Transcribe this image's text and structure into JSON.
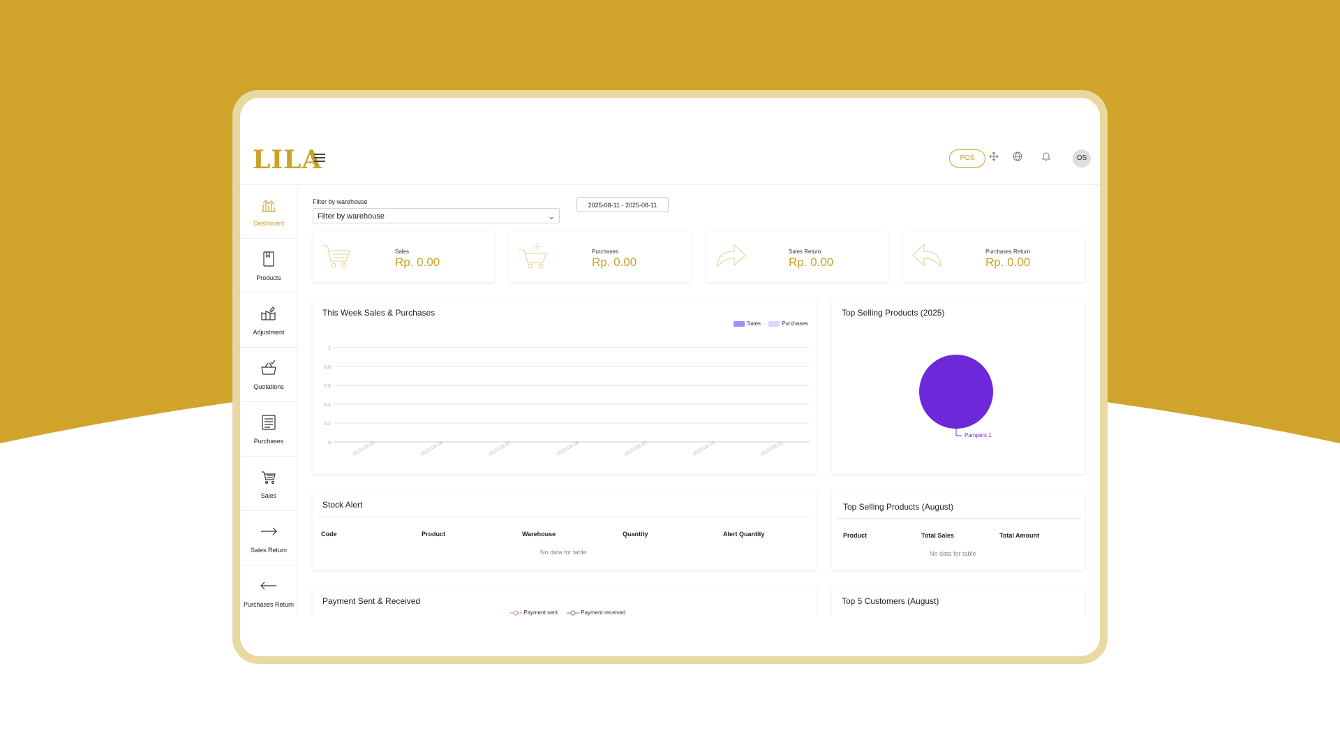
{
  "colors": {
    "gold": "#d0a42a",
    "accent": "#c9a227",
    "pie": "#6d28d9",
    "sales": "#a78bfa",
    "purchases": "#ddd6fe"
  },
  "app": {
    "logo": "LILA"
  },
  "header": {
    "pos_label": "POS",
    "icons": [
      "fullscreen-icon",
      "globe-icon",
      "bell-icon"
    ],
    "avatar_initials": "OS"
  },
  "sidebar": {
    "items": [
      {
        "label": "Dashboard",
        "icon": "chart-icon",
        "active": true
      },
      {
        "label": "Products",
        "icon": "box-icon"
      },
      {
        "label": "Adjustment",
        "icon": "adjustment-icon"
      },
      {
        "label": "Quotations",
        "icon": "basket-icon"
      },
      {
        "label": "Purchases",
        "icon": "receipt-icon"
      },
      {
        "label": "Sales",
        "icon": "cart-icon"
      },
      {
        "label": "Sales Return",
        "icon": "arrow-right-icon"
      },
      {
        "label": "Purchases Return",
        "icon": "arrow-left-icon"
      }
    ]
  },
  "filter": {
    "label": "Filter by warehouse",
    "selected": "Filter by warehouse",
    "date_range": "2025-08-11 - 2025-08-11"
  },
  "stats": [
    {
      "title": "Sales",
      "value": "Rp. 0.00",
      "icon": "cart-icon"
    },
    {
      "title": "Purchases",
      "value": "Rp. 0.00",
      "icon": "cart-plus-icon"
    },
    {
      "title": "Sales Return",
      "value": "Rp. 0.00",
      "icon": "share-icon"
    },
    {
      "title": "Purchases Return",
      "value": "Rp. 0.00",
      "icon": "reply-icon"
    }
  ],
  "week_chart": {
    "title": "This Week Sales & Purchases",
    "legend": [
      "Sales",
      "Purchases"
    ],
    "chart_data": {
      "type": "bar",
      "categories": [
        "2025-08-05",
        "2025-08-06",
        "2025-08-07",
        "2025-08-08",
        "2025-08-09",
        "2025-08-10",
        "2025-08-11"
      ],
      "series": [
        {
          "name": "Sales",
          "values": [
            0,
            0,
            0,
            0,
            0,
            0,
            0
          ]
        },
        {
          "name": "Purchases",
          "values": [
            0,
            0,
            0,
            0,
            0,
            0,
            0
          ]
        }
      ],
      "ylim": [
        0,
        1
      ],
      "yticks": [
        "0",
        "0.2",
        "0.4",
        "0.6",
        "0.8",
        "1"
      ]
    }
  },
  "top_selling_year": {
    "title": "Top Selling Products (2025)",
    "chart_data": {
      "type": "pie",
      "slices": [
        {
          "label": "Pampers 1",
          "value": 1
        }
      ]
    }
  },
  "stock_alert": {
    "title": "Stock Alert",
    "columns": [
      "Code",
      "Product",
      "Warehouse",
      "Quantity",
      "Alert Quantity"
    ],
    "empty": "No data for table"
  },
  "top_selling_month": {
    "title": "Top Selling Products (August)",
    "columns": [
      "Product",
      "Total Sales",
      "Total Amount"
    ],
    "empty": "No data for table"
  },
  "payments": {
    "title": "Payment Sent & Received",
    "legend": [
      "Payment sent",
      "Payment received"
    ]
  },
  "top_customers": {
    "title": "Top 5 Customers (August)"
  }
}
